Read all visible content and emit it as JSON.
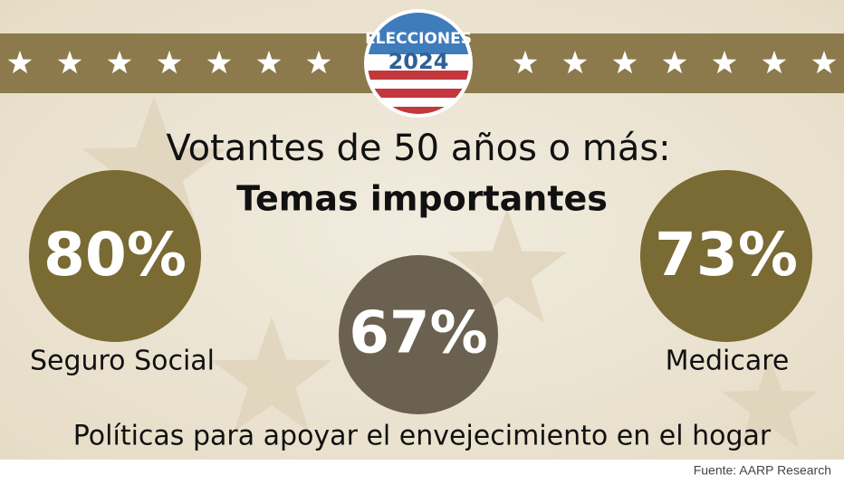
{
  "badge": {
    "top": "ELECCIONES",
    "year": "2024"
  },
  "title": {
    "line1": "Votantes de 50 años o más:",
    "line2": "Temas importantes"
  },
  "items": [
    {
      "value": "80%",
      "label": "Seguro Social"
    },
    {
      "value": "67%",
      "label": "Políticas para apoyar el envejecimiento en el hogar"
    },
    {
      "value": "73%",
      "label": "Medicare"
    }
  ],
  "source": "Fuente: AARP Research"
}
